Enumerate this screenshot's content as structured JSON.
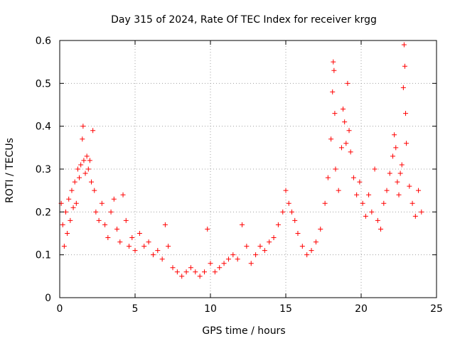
{
  "chart_data": {
    "type": "scatter",
    "title": "Day 315 of 2024, Rate Of TEC Index for receiver krgg",
    "xlabel": "GPS time / hours",
    "ylabel": "ROTI / TECUs",
    "xlim": [
      0,
      25
    ],
    "ylim": [
      0,
      0.6
    ],
    "xticks": [
      0,
      5,
      10,
      15,
      20,
      25
    ],
    "yticks": [
      0,
      0.1,
      0.2,
      0.3,
      0.4,
      0.5,
      0.6
    ],
    "xtick_labels": [
      "0",
      "5",
      "10",
      "15",
      "20",
      "25"
    ],
    "ytick_labels": [
      "0",
      "0.1",
      "0.2",
      "0.3",
      "0.4",
      "0.5",
      "0.6"
    ],
    "grid": true,
    "marker": "+",
    "color": "#ff0000",
    "series": [
      {
        "name": "ROTI",
        "points": [
          [
            0.1,
            0.22
          ],
          [
            0.2,
            0.17
          ],
          [
            0.3,
            0.12
          ],
          [
            0.4,
            0.2
          ],
          [
            0.5,
            0.15
          ],
          [
            0.6,
            0.23
          ],
          [
            0.7,
            0.18
          ],
          [
            0.8,
            0.25
          ],
          [
            0.9,
            0.21
          ],
          [
            1.0,
            0.27
          ],
          [
            1.1,
            0.22
          ],
          [
            1.2,
            0.3
          ],
          [
            1.3,
            0.28
          ],
          [
            1.4,
            0.31
          ],
          [
            1.5,
            0.37
          ],
          [
            1.55,
            0.4
          ],
          [
            1.6,
            0.32
          ],
          [
            1.7,
            0.29
          ],
          [
            1.8,
            0.33
          ],
          [
            1.9,
            0.3
          ],
          [
            2.0,
            0.32
          ],
          [
            2.1,
            0.27
          ],
          [
            2.2,
            0.39
          ],
          [
            2.3,
            0.25
          ],
          [
            2.4,
            0.2
          ],
          [
            2.6,
            0.18
          ],
          [
            2.8,
            0.22
          ],
          [
            3.0,
            0.17
          ],
          [
            3.2,
            0.14
          ],
          [
            3.4,
            0.2
          ],
          [
            3.6,
            0.23
          ],
          [
            3.8,
            0.16
          ],
          [
            4.0,
            0.13
          ],
          [
            4.2,
            0.24
          ],
          [
            4.4,
            0.18
          ],
          [
            4.6,
            0.12
          ],
          [
            4.8,
            0.14
          ],
          [
            5.0,
            0.11
          ],
          [
            5.3,
            0.15
          ],
          [
            5.6,
            0.12
          ],
          [
            5.9,
            0.13
          ],
          [
            6.2,
            0.1
          ],
          [
            6.5,
            0.11
          ],
          [
            6.8,
            0.09
          ],
          [
            7.0,
            0.17
          ],
          [
            7.2,
            0.12
          ],
          [
            7.5,
            0.07
          ],
          [
            7.8,
            0.06
          ],
          [
            8.1,
            0.05
          ],
          [
            8.4,
            0.06
          ],
          [
            8.7,
            0.07
          ],
          [
            9.0,
            0.06
          ],
          [
            9.3,
            0.05
          ],
          [
            9.6,
            0.06
          ],
          [
            9.8,
            0.16
          ],
          [
            10.0,
            0.08
          ],
          [
            10.3,
            0.06
          ],
          [
            10.6,
            0.07
          ],
          [
            10.9,
            0.08
          ],
          [
            11.2,
            0.09
          ],
          [
            11.5,
            0.1
          ],
          [
            11.8,
            0.09
          ],
          [
            12.1,
            0.17
          ],
          [
            12.4,
            0.12
          ],
          [
            12.7,
            0.08
          ],
          [
            13.0,
            0.1
          ],
          [
            13.3,
            0.12
          ],
          [
            13.6,
            0.11
          ],
          [
            13.9,
            0.13
          ],
          [
            14.2,
            0.14
          ],
          [
            14.5,
            0.17
          ],
          [
            14.8,
            0.2
          ],
          [
            15.0,
            0.25
          ],
          [
            15.2,
            0.22
          ],
          [
            15.4,
            0.2
          ],
          [
            15.6,
            0.18
          ],
          [
            15.8,
            0.15
          ],
          [
            16.1,
            0.12
          ],
          [
            16.4,
            0.1
          ],
          [
            16.7,
            0.11
          ],
          [
            17.0,
            0.13
          ],
          [
            17.3,
            0.16
          ],
          [
            17.6,
            0.22
          ],
          [
            17.8,
            0.28
          ],
          [
            18.0,
            0.37
          ],
          [
            18.1,
            0.48
          ],
          [
            18.15,
            0.55
          ],
          [
            18.2,
            0.53
          ],
          [
            18.25,
            0.43
          ],
          [
            18.3,
            0.3
          ],
          [
            18.5,
            0.25
          ],
          [
            18.7,
            0.35
          ],
          [
            18.8,
            0.44
          ],
          [
            18.9,
            0.41
          ],
          [
            19.0,
            0.36
          ],
          [
            19.1,
            0.5
          ],
          [
            19.2,
            0.39
          ],
          [
            19.3,
            0.34
          ],
          [
            19.5,
            0.28
          ],
          [
            19.7,
            0.24
          ],
          [
            19.9,
            0.27
          ],
          [
            20.1,
            0.22
          ],
          [
            20.3,
            0.19
          ],
          [
            20.5,
            0.24
          ],
          [
            20.7,
            0.2
          ],
          [
            20.9,
            0.3
          ],
          [
            21.1,
            0.18
          ],
          [
            21.3,
            0.16
          ],
          [
            21.5,
            0.22
          ],
          [
            21.7,
            0.25
          ],
          [
            21.9,
            0.29
          ],
          [
            22.1,
            0.33
          ],
          [
            22.2,
            0.38
          ],
          [
            22.3,
            0.35
          ],
          [
            22.4,
            0.27
          ],
          [
            22.5,
            0.24
          ],
          [
            22.6,
            0.29
          ],
          [
            22.7,
            0.31
          ],
          [
            22.8,
            0.49
          ],
          [
            22.85,
            0.59
          ],
          [
            22.9,
            0.54
          ],
          [
            22.95,
            0.43
          ],
          [
            23.0,
            0.36
          ],
          [
            23.2,
            0.26
          ],
          [
            23.4,
            0.22
          ],
          [
            23.6,
            0.19
          ],
          [
            23.8,
            0.25
          ],
          [
            24.0,
            0.2
          ]
        ]
      }
    ]
  }
}
